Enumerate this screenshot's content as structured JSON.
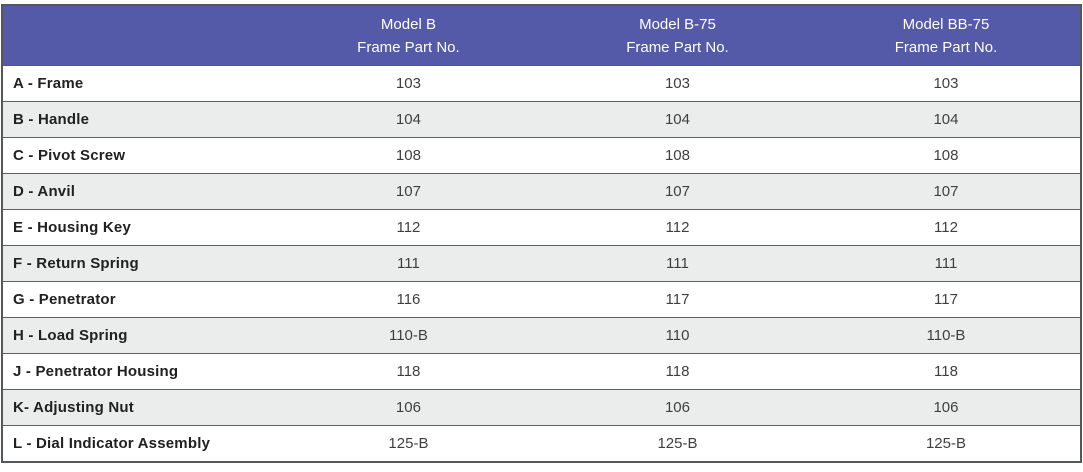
{
  "colors": {
    "header_bg": "#5459a8",
    "header_text": "#ffffff",
    "row_alt_bg": "#ebedec",
    "row_bg": "#ffffff",
    "grid_border": "#55585b",
    "label_text": "#212121",
    "value_text": "#3f3f3f"
  },
  "table": {
    "corner_header": "",
    "columns": [
      {
        "line1": "Model B",
        "line2": "Frame Part No."
      },
      {
        "line1": "Model B-75",
        "line2": "Frame Part No."
      },
      {
        "line1": "Model BB-75",
        "line2": "Frame Part No."
      }
    ],
    "rows": [
      {
        "label": "A - Frame",
        "values": [
          "103",
          "103",
          "103"
        ]
      },
      {
        "label": "B - Handle",
        "values": [
          "104",
          "104",
          "104"
        ]
      },
      {
        "label": "C - Pivot Screw",
        "values": [
          "108",
          "108",
          "108"
        ]
      },
      {
        "label": "D - Anvil",
        "values": [
          "107",
          "107",
          "107"
        ]
      },
      {
        "label": "E - Housing Key",
        "values": [
          "112",
          "112",
          "112"
        ]
      },
      {
        "label": "F - Return Spring",
        "values": [
          "111",
          "111",
          "111"
        ]
      },
      {
        "label": "G - Penetrator",
        "values": [
          "116",
          "117",
          "117"
        ]
      },
      {
        "label": "H - Load Spring",
        "values": [
          "110-B",
          "110",
          "110-B"
        ]
      },
      {
        "label": "J - Penetrator Housing",
        "values": [
          "118",
          "118",
          "118"
        ]
      },
      {
        "label": "K- Adjusting Nut",
        "values": [
          "106",
          "106",
          "106"
        ]
      },
      {
        "label": "L - Dial Indicator Assembly",
        "values": [
          "125-B",
          "125-B",
          "125-B"
        ]
      }
    ]
  }
}
